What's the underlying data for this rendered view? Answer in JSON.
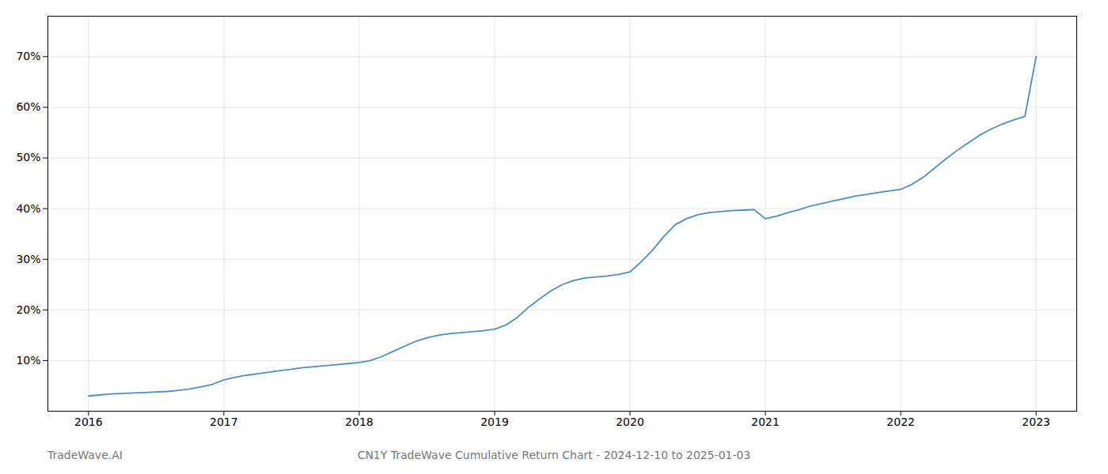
{
  "chart_data": {
    "type": "line",
    "title": "CN1Y TradeWave Cumulative Return Chart - 2024-12-10 to 2025-01-03",
    "annotations": [
      "TradeWave.AI"
    ],
    "color": "#4a8fc4",
    "grid": true,
    "x": [
      2016.0,
      2016.083,
      2016.167,
      2016.25,
      2016.333,
      2016.417,
      2016.5,
      2016.583,
      2016.667,
      2016.75,
      2016.833,
      2016.917,
      2017.0,
      2017.083,
      2017.167,
      2017.25,
      2017.333,
      2017.417,
      2017.5,
      2017.583,
      2017.667,
      2017.75,
      2017.833,
      2017.917,
      2018.0,
      2018.083,
      2018.167,
      2018.25,
      2018.333,
      2018.417,
      2018.5,
      2018.583,
      2018.667,
      2018.75,
      2018.833,
      2018.917,
      2019.0,
      2019.083,
      2019.167,
      2019.25,
      2019.333,
      2019.417,
      2019.5,
      2019.583,
      2019.667,
      2019.75,
      2019.833,
      2019.917,
      2020.0,
      2020.083,
      2020.167,
      2020.25,
      2020.333,
      2020.417,
      2020.5,
      2020.583,
      2020.667,
      2020.75,
      2020.833,
      2020.917,
      2021.0,
      2021.083,
      2021.167,
      2021.25,
      2021.333,
      2021.417,
      2021.5,
      2021.583,
      2021.667,
      2021.75,
      2021.833,
      2021.917,
      2022.0,
      2022.083,
      2022.167,
      2022.25,
      2022.333,
      2022.417,
      2022.5,
      2022.583,
      2022.667,
      2022.75,
      2022.833,
      2022.917,
      2023.0
    ],
    "values": [
      0.03,
      0.032,
      0.034,
      0.035,
      0.036,
      0.037,
      0.038,
      0.039,
      0.041,
      0.044,
      0.048,
      0.053,
      0.062,
      0.067,
      0.071,
      0.074,
      0.077,
      0.08,
      0.083,
      0.086,
      0.088,
      0.09,
      0.092,
      0.094,
      0.096,
      0.1,
      0.108,
      0.118,
      0.128,
      0.138,
      0.145,
      0.15,
      0.153,
      0.155,
      0.157,
      0.159,
      0.162,
      0.17,
      0.185,
      0.205,
      0.222,
      0.238,
      0.25,
      0.258,
      0.263,
      0.265,
      0.267,
      0.27,
      0.275,
      0.295,
      0.318,
      0.345,
      0.368,
      0.38,
      0.388,
      0.392,
      0.394,
      0.396,
      0.397,
      0.398,
      0.38,
      0.385,
      0.392,
      0.398,
      0.405,
      0.41,
      0.415,
      0.42,
      0.425,
      0.428,
      0.432,
      0.435,
      0.438,
      0.448,
      0.462,
      0.48,
      0.498,
      0.515,
      0.53,
      0.545,
      0.557,
      0.567,
      0.575,
      0.582,
      0.7
    ],
    "xlim": [
      2015.7,
      2023.3
    ],
    "xticks": [
      2016,
      2017,
      2018,
      2019,
      2020,
      2021,
      2022,
      2023
    ],
    "ylim": [
      0.0,
      0.78
    ],
    "yticks": [
      {
        "value": 0.1,
        "label": "10%"
      },
      {
        "value": 0.2,
        "label": "20%"
      },
      {
        "value": 0.3,
        "label": "30%"
      },
      {
        "value": 0.4,
        "label": "40%"
      },
      {
        "value": 0.5,
        "label": "50%"
      },
      {
        "value": 0.6,
        "label": "60%"
      },
      {
        "value": 0.7,
        "label": "70%"
      }
    ]
  }
}
